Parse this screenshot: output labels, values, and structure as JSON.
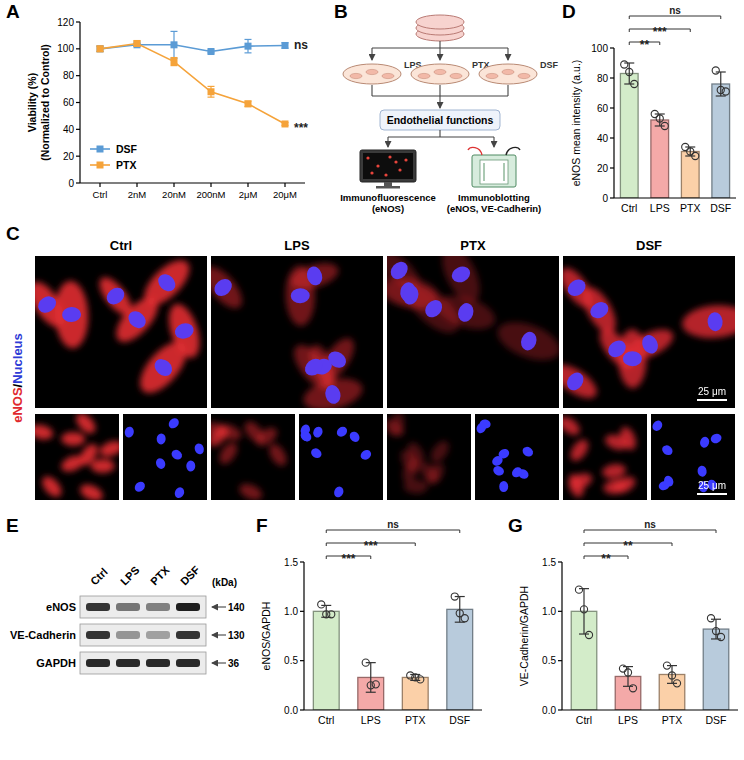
{
  "chart_data": [
    {
      "panel_label": "A",
      "type": "line",
      "categories": [
        "Ctrl",
        "2nM",
        "20nM",
        "200nM",
        "2μM",
        "20μM"
      ],
      "ylabel": [
        "Viability (%)",
        "(Normalized to Control)"
      ],
      "ylim": [
        0,
        120
      ],
      "yticks": [
        0,
        20,
        40,
        60,
        80,
        100,
        120
      ],
      "grid": false,
      "legend": "lower left",
      "marker": "square",
      "series": [
        {
          "name": "DSF",
          "color": "#5b9bd5",
          "values": [
            100,
            103,
            103,
            98,
            102,
            102.5
          ],
          "errors": [
            2,
            1,
            10,
            1,
            5,
            2
          ],
          "annotation": "ns"
        },
        {
          "name": "PTX",
          "color": "#f5a33a",
          "values": [
            100,
            104,
            90.5,
            68,
            59,
            44
          ],
          "errors": [
            2,
            2,
            3,
            4,
            2,
            1
          ],
          "annotation": "***"
        }
      ]
    },
    {
      "panel_label": "D",
      "type": "bar",
      "categories": [
        "Ctrl",
        "LPS",
        "PTX",
        "DSF"
      ],
      "ylabel": "eNOS mean intensity (a.u.)",
      "ylim": [
        0,
        100
      ],
      "yticks": [
        0,
        20,
        40,
        60,
        80,
        100
      ],
      "grid": false,
      "values": [
        83,
        52,
        31,
        76
      ],
      "errors": [
        7,
        4,
        3,
        8
      ],
      "points": [
        [
          89,
          84,
          76
        ],
        [
          56,
          53,
          48
        ],
        [
          34,
          31,
          28
        ],
        [
          85,
          72,
          71
        ]
      ],
      "colors": [
        "#d3ecc9",
        "#f4a9a8",
        "#fbd0a8",
        "#b8cbdc"
      ],
      "significance": [
        null,
        "**",
        "***",
        "ns"
      ]
    },
    {
      "panel_label": "F",
      "type": "bar",
      "categories": [
        "Ctrl",
        "LPS",
        "PTX",
        "DSF"
      ],
      "ylabel": "eNOS/GAPDH",
      "ylim": [
        0,
        1.5
      ],
      "yticks": [
        {
          "value": 0,
          "label": "0.0"
        },
        {
          "value": 0.5,
          "label": "0.5"
        },
        {
          "value": 1,
          "label": "1.0"
        },
        {
          "value": 1.5,
          "label": "1.5"
        }
      ],
      "grid": false,
      "values": [
        1.0,
        0.33,
        0.33,
        1.02
      ],
      "errors": [
        0.06,
        0.15,
        0.03,
        0.13
      ],
      "points": [
        [
          1.07,
          0.97,
          0.97
        ],
        [
          0.48,
          0.25,
          0.26
        ],
        [
          0.35,
          0.33,
          0.31
        ],
        [
          1.15,
          0.98,
          0.93
        ]
      ],
      "colors": [
        "#d3ecc9",
        "#f4a9a8",
        "#fbd0a8",
        "#b8cbdc"
      ],
      "significance": [
        null,
        "***",
        "***",
        "ns"
      ]
    },
    {
      "panel_label": "G",
      "type": "bar",
      "categories": [
        "Ctrl",
        "LPS",
        "PTX",
        "DSF"
      ],
      "ylabel": "VE-Cadherin/GAPDH",
      "ylim": [
        0,
        1.5
      ],
      "yticks": [
        {
          "value": 0,
          "label": "0.0"
        },
        {
          "value": 0.5,
          "label": "0.5"
        },
        {
          "value": 1,
          "label": "1.0"
        },
        {
          "value": 1.5,
          "label": "1.5"
        }
      ],
      "grid": false,
      "values": [
        1.0,
        0.34,
        0.36,
        0.82
      ],
      "errors": [
        0.23,
        0.1,
        0.09,
        0.1
      ],
      "points": [
        [
          1.22,
          1.02,
          0.76
        ],
        [
          0.42,
          0.38,
          0.22
        ],
        [
          0.45,
          0.35,
          0.27
        ],
        [
          0.93,
          0.8,
          0.74
        ]
      ],
      "colors": [
        "#d3ecc9",
        "#f4a9a8",
        "#fbd0a8",
        "#b8cbdc"
      ],
      "significance": [
        null,
        "**",
        "**",
        "ns"
      ]
    }
  ],
  "diagram": {
    "panel_label": "B",
    "treatments": [
      "LPS",
      "PTX",
      "DSF"
    ],
    "center": "Endothelial functions",
    "assays": [
      {
        "title": "Immunofluorescence",
        "detail": "(eNOS)"
      },
      {
        "title": "Immunoblotting",
        "detail": "(eNOS, VE-Cadherin)"
      }
    ]
  },
  "images": {
    "panel_label": "C",
    "columns": [
      "Ctrl",
      "LPS",
      "PTX",
      "DSF"
    ],
    "stain_label": [
      "eNOS",
      "/",
      "Nucleus"
    ],
    "scale_bar": "25 μm"
  },
  "blot": {
    "panel_label": "E",
    "lanes": [
      "Ctrl",
      "LPS",
      "PTX",
      "DSF"
    ],
    "unit": "(kDa)",
    "rows": [
      {
        "name": "eNOS",
        "size": 140
      },
      {
        "name": "VE-Cadherin",
        "size": 130
      },
      {
        "name": "GAPDH",
        "size": 36
      }
    ]
  }
}
